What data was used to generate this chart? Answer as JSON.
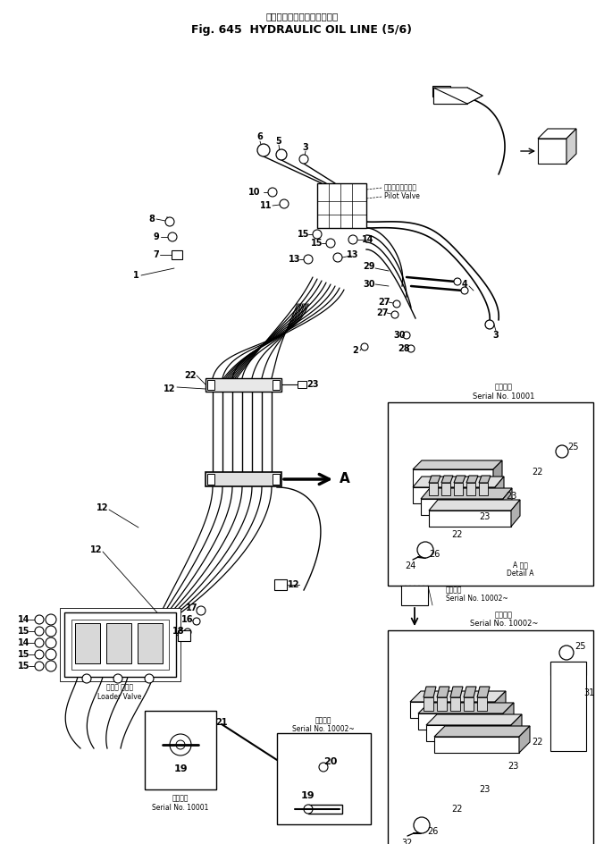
{
  "title_jp": "ハイドロリックオイルライン",
  "title_en": "Fig. 645  HYDRAULIC OIL LINE (5/6)",
  "pilot_valve_jp": "ハイロットバルブ",
  "pilot_valve_en": "Pilot Valve",
  "loader_valve_jp": "ローダ バルブ",
  "loader_valve_en": "Loader Valve",
  "serial_10001": "Serial No. 10001",
  "serial_10002": "Serial No. 10002~",
  "applicable_jp": "適用号機",
  "detail_a_en": "Detail A",
  "detail_a_jp": "A 詳細",
  "bg": "#ffffff"
}
